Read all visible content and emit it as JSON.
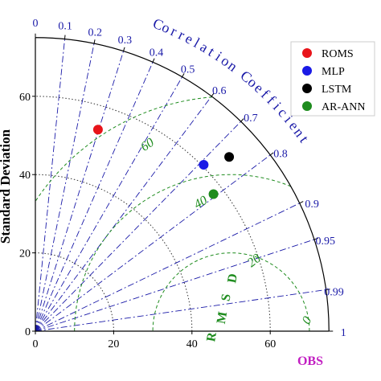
{
  "chart_data": {
    "type": "scatter",
    "subtype": "taylor-diagram",
    "ylabel": "Standard Deviation",
    "xlabel": "OBS",
    "std_range": [
      0,
      75
    ],
    "std_ticks": [
      0,
      20,
      40,
      60
    ],
    "std_tick_labels": [
      "0",
      "20",
      "40",
      "60"
    ],
    "reference_std": 50,
    "correlation_label": "Correlation Coefficient",
    "correlation_ticks": [
      0,
      0.1,
      0.2,
      0.3,
      0.4,
      0.5,
      0.6,
      0.7,
      0.8,
      0.9,
      0.95,
      0.99,
      1
    ],
    "correlation_tick_labels": [
      "0",
      "0.1",
      "0.2",
      "0.3",
      "0.4",
      "0.5",
      "0.6",
      "0.7",
      "0.8",
      "0.9",
      "0.95",
      "0.99",
      "1"
    ],
    "rmsd_label": "R M S D",
    "rmsd_contours": [
      0,
      20,
      40,
      60
    ],
    "rmsd_contour_labels": [
      "0",
      "20",
      "40",
      "60"
    ],
    "std_arcs_dotted": [
      20,
      40,
      60
    ],
    "grid": true,
    "legend_position": "top-right",
    "series": [
      {
        "name": "ROMS",
        "color": "#e8141a",
        "x": 16,
        "y": 51.5
      },
      {
        "name": "MLP",
        "color": "#1a1ae6",
        "x": 43,
        "y": 42.5
      },
      {
        "name": "LSTM",
        "color": "#000000",
        "x": 49.5,
        "y": 44.5
      },
      {
        "name": "AR-ANN",
        "color": "#1e8c1e",
        "x": 45.5,
        "y": 35
      }
    ],
    "colors": {
      "correlation": "#1a1aa8",
      "rmsd": "#1e8c1e",
      "std_arc": "#333333",
      "obs_label": "#c21fc2"
    }
  }
}
